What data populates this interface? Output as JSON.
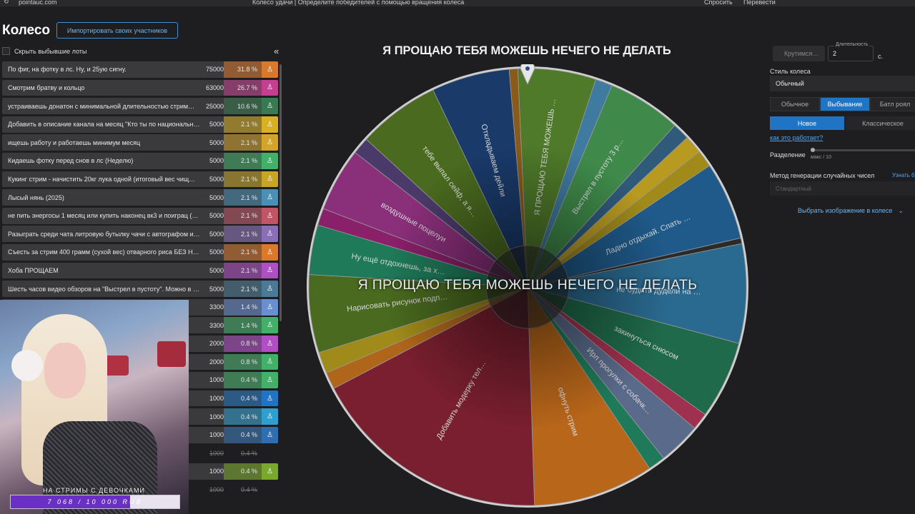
{
  "browser": {
    "url": "pointauc.com",
    "tab_title": "Колесо удачи | Определите победителей с помощью вращения колеса",
    "ask_label": "Спросить",
    "translate_label": "Перевести"
  },
  "header": {
    "title": "Колесо",
    "import_label": "Импортировать своих участников",
    "hide_label": "Скрыть выбывшие лоты",
    "collapse_icon": "«"
  },
  "lots": [
    {
      "name": "По фиг, на фотку в лс. Ну, и 25ую сигну.",
      "amount": "75000",
      "pct": "31.8 %",
      "color": "#d9792c"
    },
    {
      "name": "Смотрим братву и кольцо",
      "amount": "63000",
      "pct": "26.7 %",
      "color": "#c43f8f"
    },
    {
      "name": "устраиваешь донатон с минимальной длительностью стрим…",
      "amount": "25000",
      "pct": "10.6 %",
      "color": "#3a7a52"
    },
    {
      "name": "Добавить в описание канала на месяц \"Кто ты по национальн…",
      "amount": "5000",
      "pct": "2.1 %",
      "color": "#d9b024"
    },
    {
      "name": "ищешь работу и работаешь минимум месяц",
      "amount": "5000",
      "pct": "2.1 %",
      "color": "#d4a32a"
    },
    {
      "name": "Кидаешь фотку перед снов в лс (Неделю)",
      "amount": "5000",
      "pct": "2.1 %",
      "color": "#43b06a"
    },
    {
      "name": "Кукинг стрим - начистить 20кг лука одной (итоговый вес чищ…",
      "amount": "5000",
      "pct": "2.1 %",
      "color": "#c9a524"
    },
    {
      "name": "Лысый нянь (2025)",
      "amount": "5000",
      "pct": "2.1 %",
      "color": "#4a8fb5"
    },
    {
      "name": "не пить энергосы 1 месяц или купить наконец вк3 и поиграц (…",
      "amount": "5000",
      "pct": "2.1 %",
      "color": "#c05566"
    },
    {
      "name": "Разыграть среди чата литровую бутылку чачи с автографом и…",
      "amount": "5000",
      "pct": "2.1 %",
      "color": "#8a6fb8"
    },
    {
      "name": "Съесть за стрим 400 грамм (сухой вес) отварного риса БЕЗ Н…",
      "amount": "5000",
      "pct": "2.1 %",
      "color": "#d9792c"
    },
    {
      "name": "Хоба ПРОЩАЕМ",
      "amount": "5000",
      "pct": "2.1 %",
      "color": "#b04fc4"
    },
    {
      "name": "Шесть часов видео обзоров на \"Выстрел в пустоту\". Можно в …",
      "amount": "5000",
      "pct": "2.1 %",
      "color": "#4a7a95"
    },
    {
      "name": "",
      "amount": "3300",
      "pct": "1.4 %",
      "color": "#6a8fd0"
    },
    {
      "name": "",
      "amount": "3300",
      "pct": "1.4 %",
      "color": "#43b06a"
    },
    {
      "name": "",
      "amount": "2000",
      "pct": "0.8 %",
      "color": "#b04fc4"
    },
    {
      "name": "",
      "amount": "2000",
      "pct": "0.8 %",
      "color": "#43b06a"
    },
    {
      "name": "",
      "amount": "1000",
      "pct": "0.4 %",
      "color": "#43b06a"
    },
    {
      "name": "",
      "amount": "1000",
      "pct": "0.4 %",
      "color": "#1f74c4"
    },
    {
      "name": "",
      "amount": "1000",
      "pct": "0.4 %",
      "color": "#2f9fd0"
    },
    {
      "name": "",
      "amount": "1000",
      "pct": "0.4 %",
      "color": "#2f6fb0"
    },
    {
      "name": "",
      "amount": "1000",
      "pct": "0.4 %",
      "color": "",
      "struck": true
    },
    {
      "name": "",
      "amount": "1000",
      "pct": "0.4 %",
      "color": "#7aa82a"
    },
    {
      "name": "",
      "amount": "1000",
      "pct": "0.4 %",
      "color": "",
      "struck": true
    }
  ],
  "stream_goal": {
    "label": "НА СТРИМЫ С ДЕВОЧКАМИ",
    "progress_text": "7 068 / 10 000 RUB",
    "progress_fraction": 0.7068
  },
  "wheel": {
    "title": "Я ПРОЩАЮ ТЕБЯ МОЖЕШЬ НЕЧЕГО НЕ ДЕЛАТЬ",
    "winner": "Я ПРОЩАЮ ТЕБЯ МОЖЕШЬ НЕЧЕГО НЕ ДЕЛАТЬ",
    "segments": [
      {
        "label": "Я ПРОЩАЮ ТЕБЯ МОЖЕШЬ …",
        "fraction": 0.055,
        "color": "#4f7a2a"
      },
      {
        "label": "",
        "fraction": 0.012,
        "color": "#3f7aa0"
      },
      {
        "label": "Выстрел в пустоту 3 р…",
        "fraction": 0.052,
        "color": "#3f8a4a"
      },
      {
        "label": "",
        "fraction": 0.012,
        "color": "#2f5a7a"
      },
      {
        "label": "",
        "fraction": 0.013,
        "color": "#b89a20"
      },
      {
        "label": "",
        "fraction": 0.012,
        "color": "#a08a1a"
      },
      {
        "label": "Ладно отдыхай. Спать …",
        "fraction": 0.055,
        "color": "#1f5a8a"
      },
      {
        "label": "",
        "fraction": 0.004,
        "color": "#2a2a2a"
      },
      {
        "label": "не будить дудели на …",
        "fraction": 0.07,
        "color": "#2a6a90"
      },
      {
        "label": "закинуться снюсом",
        "fraction": 0.055,
        "color": "#1f6a4a"
      },
      {
        "label": "",
        "fraction": 0.012,
        "color": "#a03050"
      },
      {
        "label": "Ирл прогулки с собачк…",
        "fraction": 0.03,
        "color": "#5a6a8a"
      },
      {
        "label": "",
        "fraction": 0.012,
        "color": "#1f7a5a"
      },
      {
        "label": "офнуть стрим",
        "fraction": 0.085,
        "color": "#b8661a"
      },
      {
        "label": "Добавить модерку тел…",
        "fraction": 0.17,
        "color": "#7a1f2f"
      },
      {
        "label": "",
        "fraction": 0.012,
        "color": "#b0661a"
      },
      {
        "label": "",
        "fraction": 0.015,
        "color": "#a08a1a"
      },
      {
        "label": "Нарисовать рисунок подп…",
        "fraction": 0.055,
        "color": "#4a6a1f"
      },
      {
        "label": "Ну ещё отдохнешь, за х…",
        "fraction": 0.035,
        "color": "#1f7a5a"
      },
      {
        "label": "",
        "fraction": 0.012,
        "color": "#8a1f6a"
      },
      {
        "label": "воздушные поцелуи",
        "fraction": 0.045,
        "color": "#8a2f7a"
      },
      {
        "label": "",
        "fraction": 0.012,
        "color": "#4a3a6a"
      },
      {
        "label": "тебе выпал сейф, а я…",
        "fraction": 0.058,
        "color": "#4a6a1f"
      },
      {
        "label": "Откладываем дейли",
        "fraction": 0.055,
        "color": "#1a3a6a"
      },
      {
        "label": "",
        "fraction": 0.006,
        "color": "#8a5a1a"
      }
    ]
  },
  "settings": {
    "spin_label": "Крутимся…",
    "duration_label": "Длительность",
    "duration_value": "2",
    "duration_unit": "с.",
    "style_label": "Стиль колеса",
    "style_value": "Обычный",
    "mode_tabs": [
      "Обычное",
      "Выбывание",
      "Батл роял"
    ],
    "mode_active": 1,
    "type_tabs": [
      "Новое",
      "Классическое"
    ],
    "type_active": 0,
    "how_link": "как это работает?",
    "split_label": "Разделение",
    "split_max": "макс / 10",
    "rng_label": "Метод генерации случайных чисел",
    "rng_more": "Узнать б",
    "rng_value": "Стандартный",
    "image_button": "Выбрать изображение в колесе"
  },
  "colors": {
    "accent": "#1f74c4",
    "link": "#4da3ee",
    "goal_fill": "#6a2fc4"
  }
}
